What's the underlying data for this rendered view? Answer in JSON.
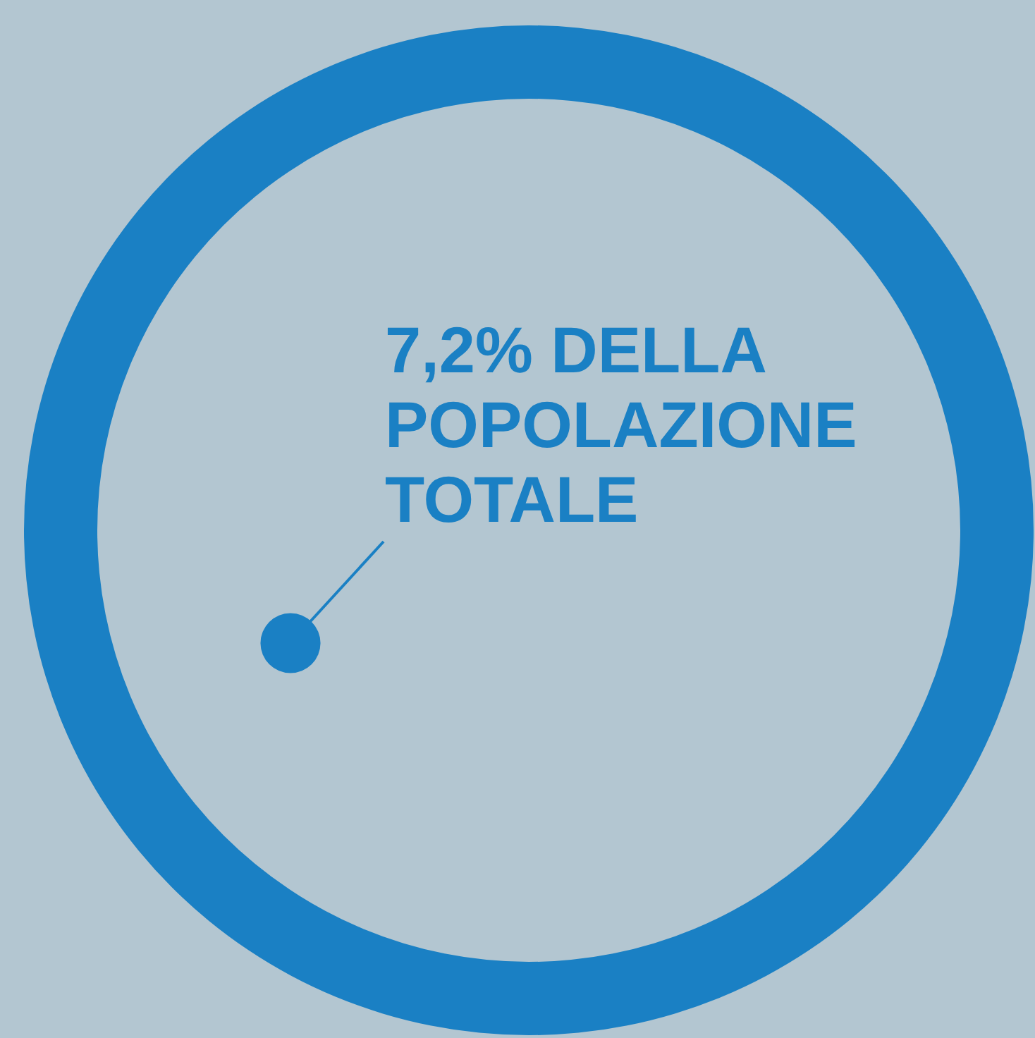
{
  "chart_data": {
    "type": "other",
    "values": [
      7.2
    ],
    "value_labels": [
      "7,2% DELLA POPOLAZIONE TOTALE"
    ],
    "colors": [
      "#1a80c4"
    ]
  }
}
